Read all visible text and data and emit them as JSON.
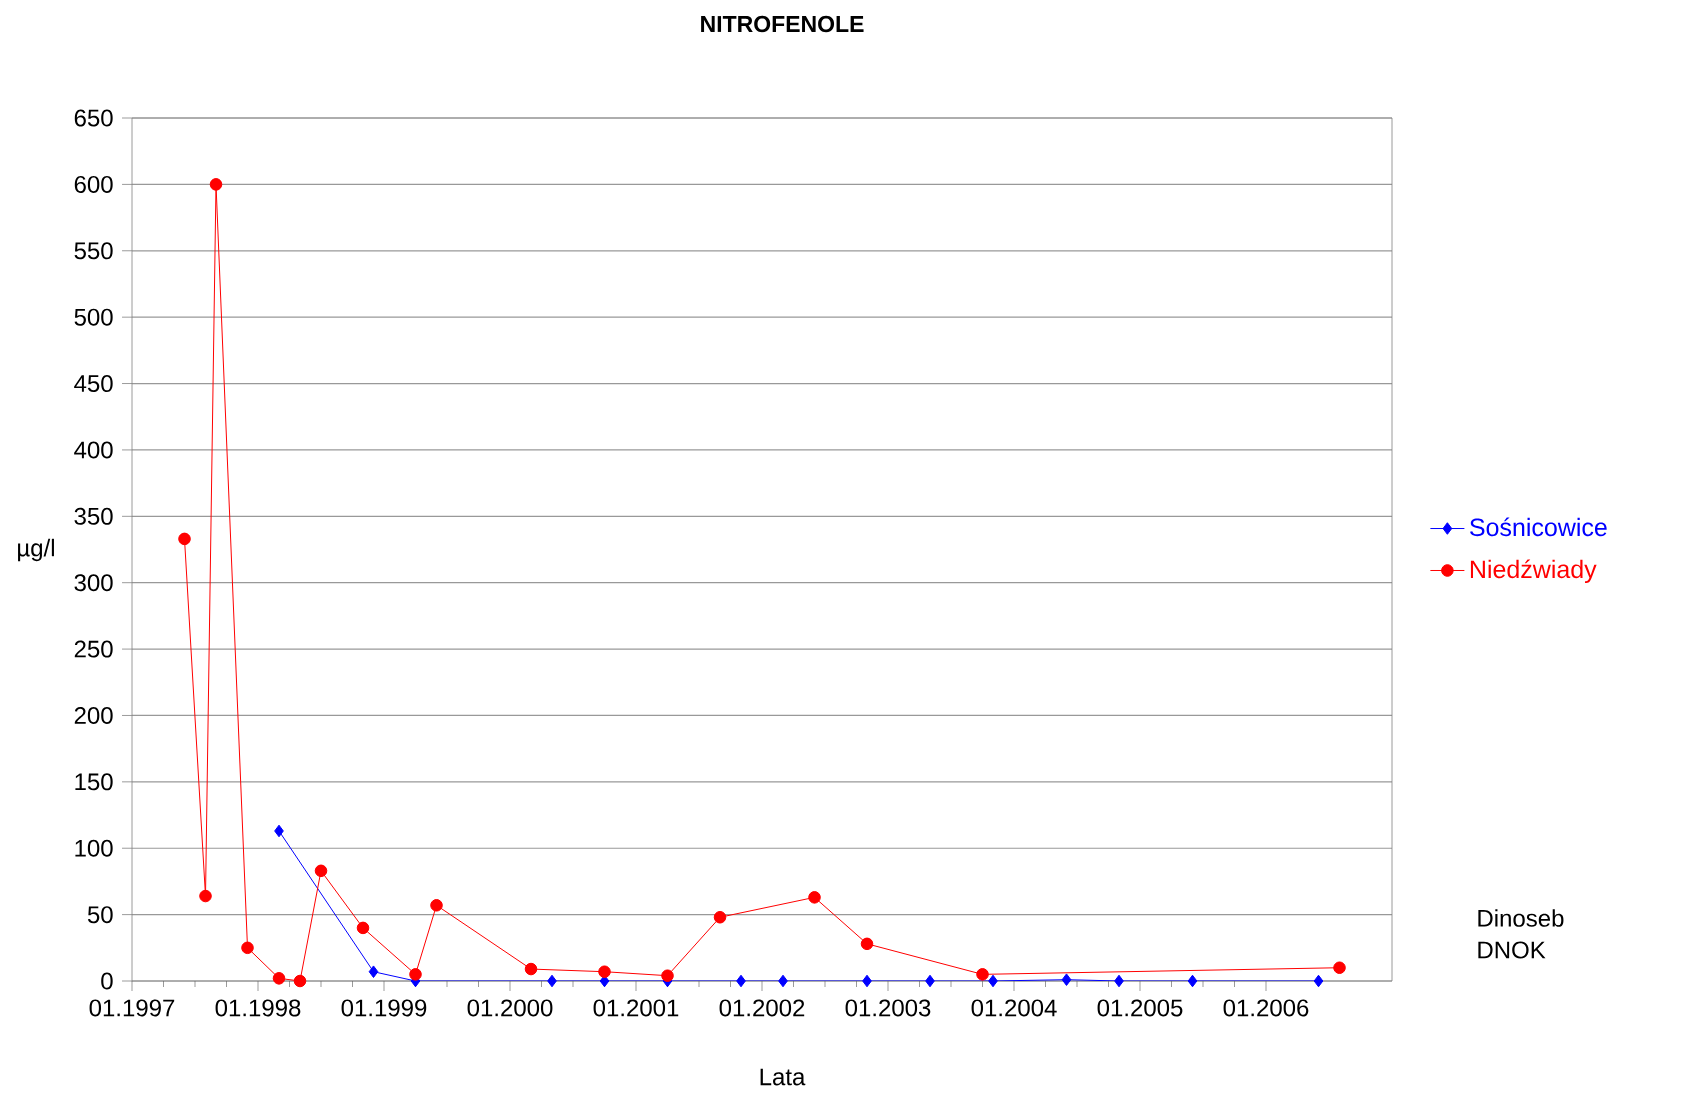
{
  "chart_data": {
    "type": "line",
    "title": "NITROFENOLE",
    "xlabel": "Lata",
    "ylabel": "µg/l",
    "series": [
      {
        "name": "Sośnicowice",
        "color": "#0000ff",
        "marker": "diamond",
        "x": [
          "1998-03",
          "1998-12",
          "1999-04",
          "2000-05",
          "2000-10",
          "2001-04",
          "2001-11",
          "2002-03",
          "2002-11",
          "2003-05",
          "2003-11",
          "2004-06",
          "2004-11",
          "2005-06",
          "2006-06"
        ],
        "values": [
          113,
          7,
          0,
          0,
          0,
          0,
          0,
          0,
          0,
          0,
          0,
          1,
          0,
          0,
          0
        ]
      },
      {
        "name": "Niedźwiady",
        "color": "#ff0000",
        "marker": "circle",
        "x": [
          "1997-06",
          "1997-08",
          "1997-09",
          "1997-12",
          "1998-03",
          "1998-05",
          "1998-07",
          "1998-11",
          "1999-04",
          "1999-06",
          "2000-03",
          "2000-10",
          "2001-04",
          "2001-09",
          "2002-06",
          "2002-11",
          "2003-10",
          "2006-08"
        ],
        "values": [
          333,
          64,
          600,
          25,
          2,
          0,
          83,
          40,
          5,
          57,
          9,
          7,
          4,
          48,
          63,
          28,
          5,
          10
        ]
      }
    ],
    "xlim": [
      "1997-01",
      "2007-01"
    ],
    "xticks": [
      {
        "value": "1997-01",
        "label": "01.1997"
      },
      {
        "value": "1998-01",
        "label": "01.1998"
      },
      {
        "value": "1999-01",
        "label": "01.1999"
      },
      {
        "value": "2000-01",
        "label": "01.2000"
      },
      {
        "value": "2001-01",
        "label": "01.2001"
      },
      {
        "value": "2002-01",
        "label": "01.2002"
      },
      {
        "value": "2003-01",
        "label": "01.2003"
      },
      {
        "value": "2004-01",
        "label": "01.2004"
      },
      {
        "value": "2005-01",
        "label": "01.2005"
      },
      {
        "value": "2006-01",
        "label": "01.2006"
      }
    ],
    "ylim": [
      0,
      650
    ],
    "yticks": [
      0,
      50,
      100,
      150,
      200,
      250,
      300,
      350,
      400,
      450,
      500,
      550,
      600,
      650
    ],
    "grid": "y",
    "legend": "right",
    "line_style": "solid",
    "annotations": [
      "Dinoseb",
      "DNOK"
    ]
  }
}
